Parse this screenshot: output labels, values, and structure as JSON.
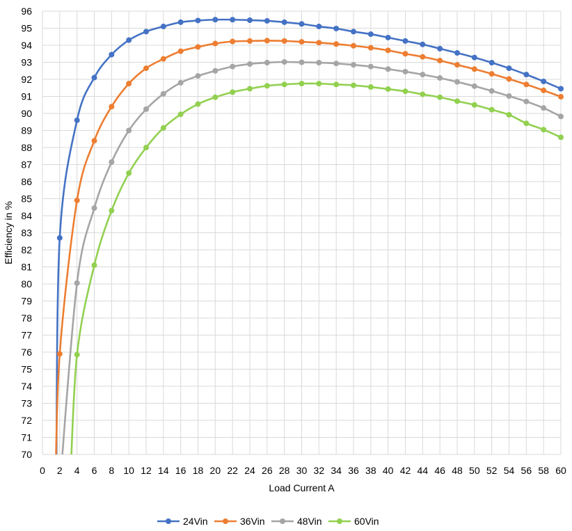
{
  "chart_data": {
    "type": "line",
    "title": "",
    "xlabel": "Load Current A",
    "ylabel": "Efficiency in %",
    "xlim": [
      0,
      60
    ],
    "ylim": [
      70,
      96
    ],
    "x_ticks": [
      0,
      2,
      4,
      6,
      8,
      10,
      12,
      14,
      16,
      18,
      20,
      22,
      24,
      26,
      28,
      30,
      32,
      34,
      36,
      38,
      40,
      42,
      44,
      46,
      48,
      50,
      52,
      54,
      56,
      58,
      60
    ],
    "y_ticks": [
      70,
      71,
      72,
      73,
      74,
      75,
      76,
      77,
      78,
      79,
      80,
      81,
      82,
      83,
      84,
      85,
      86,
      87,
      88,
      89,
      90,
      91,
      92,
      93,
      94,
      95,
      96
    ],
    "grid": true,
    "legend_position": "bottom",
    "series": [
      {
        "name": "24Vin",
        "color": "#4472C4",
        "x": [
          2,
          4,
          6,
          8,
          10,
          12,
          14,
          16,
          18,
          20,
          22,
          24,
          26,
          28,
          30,
          32,
          34,
          36,
          38,
          40,
          42,
          44,
          46,
          48,
          50,
          52,
          54,
          56,
          58,
          60
        ],
        "values": [
          82.7,
          89.6,
          92.1,
          93.45,
          94.3,
          94.8,
          95.1,
          95.35,
          95.45,
          95.5,
          95.5,
          95.47,
          95.43,
          95.35,
          95.25,
          95.1,
          94.98,
          94.8,
          94.65,
          94.45,
          94.25,
          94.05,
          93.8,
          93.55,
          93.28,
          92.98,
          92.65,
          92.28,
          91.88,
          91.45
        ]
      },
      {
        "name": "36Vin",
        "color": "#ED7D31",
        "x": [
          2,
          4,
          6,
          8,
          10,
          12,
          14,
          16,
          18,
          20,
          22,
          24,
          26,
          28,
          30,
          32,
          34,
          36,
          38,
          40,
          42,
          44,
          46,
          48,
          50,
          52,
          54,
          56,
          58,
          60
        ],
        "values": [
          75.9,
          84.9,
          88.4,
          90.4,
          91.75,
          92.65,
          93.2,
          93.65,
          93.9,
          94.1,
          94.22,
          94.25,
          94.27,
          94.25,
          94.2,
          94.15,
          94.07,
          93.97,
          93.85,
          93.7,
          93.5,
          93.32,
          93.1,
          92.85,
          92.6,
          92.32,
          92.02,
          91.7,
          91.35,
          90.98
        ]
      },
      {
        "name": "48Vin",
        "color": "#A5A5A5",
        "x": [
          4,
          6,
          8,
          10,
          12,
          14,
          16,
          18,
          20,
          22,
          24,
          26,
          28,
          30,
          32,
          34,
          36,
          38,
          40,
          42,
          44,
          46,
          48,
          50,
          52,
          54,
          56,
          58,
          60
        ],
        "values": [
          80.05,
          84.45,
          87.15,
          89.0,
          90.25,
          91.15,
          91.8,
          92.2,
          92.5,
          92.75,
          92.9,
          92.98,
          93.02,
          93.0,
          92.98,
          92.93,
          92.85,
          92.75,
          92.6,
          92.45,
          92.28,
          92.08,
          91.85,
          91.6,
          91.32,
          91.02,
          90.7,
          90.32,
          89.82
        ]
      },
      {
        "name": "60Vin",
        "color": "#92D050",
        "x": [
          4,
          6,
          8,
          10,
          12,
          14,
          16,
          18,
          20,
          22,
          24,
          26,
          28,
          30,
          32,
          34,
          36,
          38,
          40,
          42,
          44,
          46,
          48,
          50,
          52,
          54,
          56,
          58,
          60
        ],
        "values": [
          75.85,
          81.1,
          84.3,
          86.5,
          88.0,
          89.15,
          89.95,
          90.55,
          90.95,
          91.25,
          91.45,
          91.62,
          91.7,
          91.75,
          91.75,
          91.7,
          91.65,
          91.55,
          91.43,
          91.3,
          91.12,
          90.95,
          90.72,
          90.5,
          90.22,
          89.92,
          89.42,
          89.05,
          88.6
        ]
      }
    ]
  }
}
